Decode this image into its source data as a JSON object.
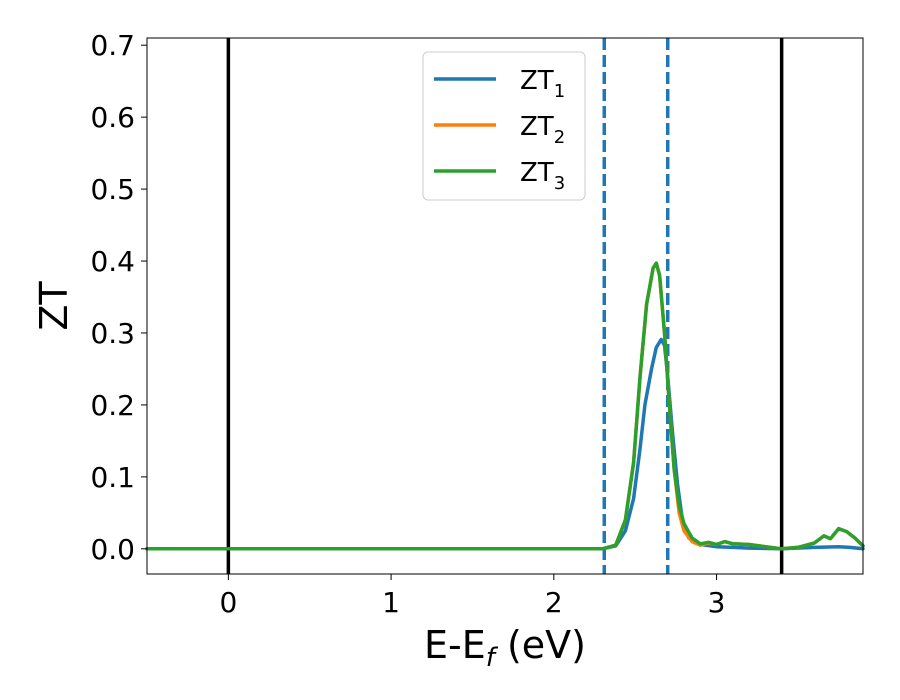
{
  "chart_data": {
    "type": "line",
    "xlabel": {
      "main": "E-E",
      "sub": "f",
      "unit": " (eV)"
    },
    "ylabel": "ZT",
    "xlim": [
      -0.5,
      3.9
    ],
    "ylim": [
      -0.035,
      0.71
    ],
    "xticks": [
      0,
      1,
      2,
      3
    ],
    "yticks": [
      0.0,
      0.1,
      0.2,
      0.3,
      0.4,
      0.5,
      0.6,
      0.7
    ],
    "legend_position": "upper-center",
    "vertical_lines": [
      {
        "x": 0.0,
        "style": "solid",
        "color": "#000000"
      },
      {
        "x": 2.31,
        "style": "dashed",
        "color": "#1f77b4"
      },
      {
        "x": 2.7,
        "style": "dashed",
        "color": "#1f77b4"
      },
      {
        "x": 3.4,
        "style": "solid",
        "color": "#000000"
      }
    ],
    "series": [
      {
        "name": "ZT",
        "sub": "1",
        "color": "#1f77b4",
        "points": [
          [
            -0.5,
            0.0
          ],
          [
            2.3,
            0.0
          ],
          [
            2.38,
            0.004
          ],
          [
            2.44,
            0.025
          ],
          [
            2.49,
            0.07
          ],
          [
            2.53,
            0.14
          ],
          [
            2.56,
            0.2
          ],
          [
            2.6,
            0.25
          ],
          [
            2.63,
            0.28
          ],
          [
            2.66,
            0.291
          ],
          [
            2.68,
            0.283
          ],
          [
            2.7,
            0.24
          ],
          [
            2.73,
            0.16
          ],
          [
            2.76,
            0.09
          ],
          [
            2.79,
            0.04
          ],
          [
            2.83,
            0.015
          ],
          [
            2.9,
            0.006
          ],
          [
            3.0,
            0.003
          ],
          [
            3.1,
            0.002
          ],
          [
            3.2,
            0.001
          ],
          [
            3.4,
            0.0
          ],
          [
            3.6,
            0.002
          ],
          [
            3.75,
            0.003
          ],
          [
            3.82,
            0.002
          ],
          [
            3.9,
            0.0
          ]
        ]
      },
      {
        "name": "ZT",
        "sub": "2",
        "color": "#ff7f0e",
        "points": [
          [
            -0.5,
            0.0
          ],
          [
            2.3,
            0.0
          ],
          [
            2.38,
            0.005
          ],
          [
            2.44,
            0.04
          ],
          [
            2.49,
            0.12
          ],
          [
            2.53,
            0.24
          ],
          [
            2.57,
            0.34
          ],
          [
            2.61,
            0.39
          ],
          [
            2.63,
            0.397
          ],
          [
            2.65,
            0.38
          ],
          [
            2.68,
            0.3
          ],
          [
            2.71,
            0.2
          ],
          [
            2.74,
            0.11
          ],
          [
            2.77,
            0.05
          ],
          [
            2.8,
            0.025
          ],
          [
            2.85,
            0.01
          ],
          [
            2.9,
            0.005
          ],
          [
            2.95,
            0.008
          ],
          [
            3.0,
            0.006
          ],
          [
            3.05,
            0.01
          ],
          [
            3.1,
            0.007
          ],
          [
            3.2,
            0.006
          ],
          [
            3.3,
            0.003
          ],
          [
            3.4,
            0.0
          ],
          [
            3.5,
            0.002
          ],
          [
            3.6,
            0.008
          ],
          [
            3.66,
            0.018
          ],
          [
            3.7,
            0.014
          ],
          [
            3.75,
            0.028
          ],
          [
            3.8,
            0.024
          ],
          [
            3.85,
            0.015
          ],
          [
            3.9,
            0.004
          ]
        ]
      },
      {
        "name": "ZT",
        "sub": "3",
        "color": "#2ca02c",
        "points": [
          [
            -0.5,
            0.0
          ],
          [
            2.3,
            0.0
          ],
          [
            2.38,
            0.005
          ],
          [
            2.44,
            0.04
          ],
          [
            2.49,
            0.12
          ],
          [
            2.53,
            0.24
          ],
          [
            2.57,
            0.34
          ],
          [
            2.61,
            0.39
          ],
          [
            2.63,
            0.397
          ],
          [
            2.65,
            0.38
          ],
          [
            2.68,
            0.3
          ],
          [
            2.71,
            0.2
          ],
          [
            2.74,
            0.11
          ],
          [
            2.77,
            0.06
          ],
          [
            2.8,
            0.035
          ],
          [
            2.85,
            0.015
          ],
          [
            2.9,
            0.007
          ],
          [
            2.95,
            0.009
          ],
          [
            3.0,
            0.006
          ],
          [
            3.05,
            0.01
          ],
          [
            3.1,
            0.007
          ],
          [
            3.2,
            0.006
          ],
          [
            3.3,
            0.003
          ],
          [
            3.4,
            0.0
          ],
          [
            3.5,
            0.002
          ],
          [
            3.6,
            0.008
          ],
          [
            3.66,
            0.018
          ],
          [
            3.7,
            0.014
          ],
          [
            3.75,
            0.028
          ],
          [
            3.8,
            0.024
          ],
          [
            3.85,
            0.015
          ],
          [
            3.9,
            0.004
          ]
        ]
      }
    ]
  }
}
